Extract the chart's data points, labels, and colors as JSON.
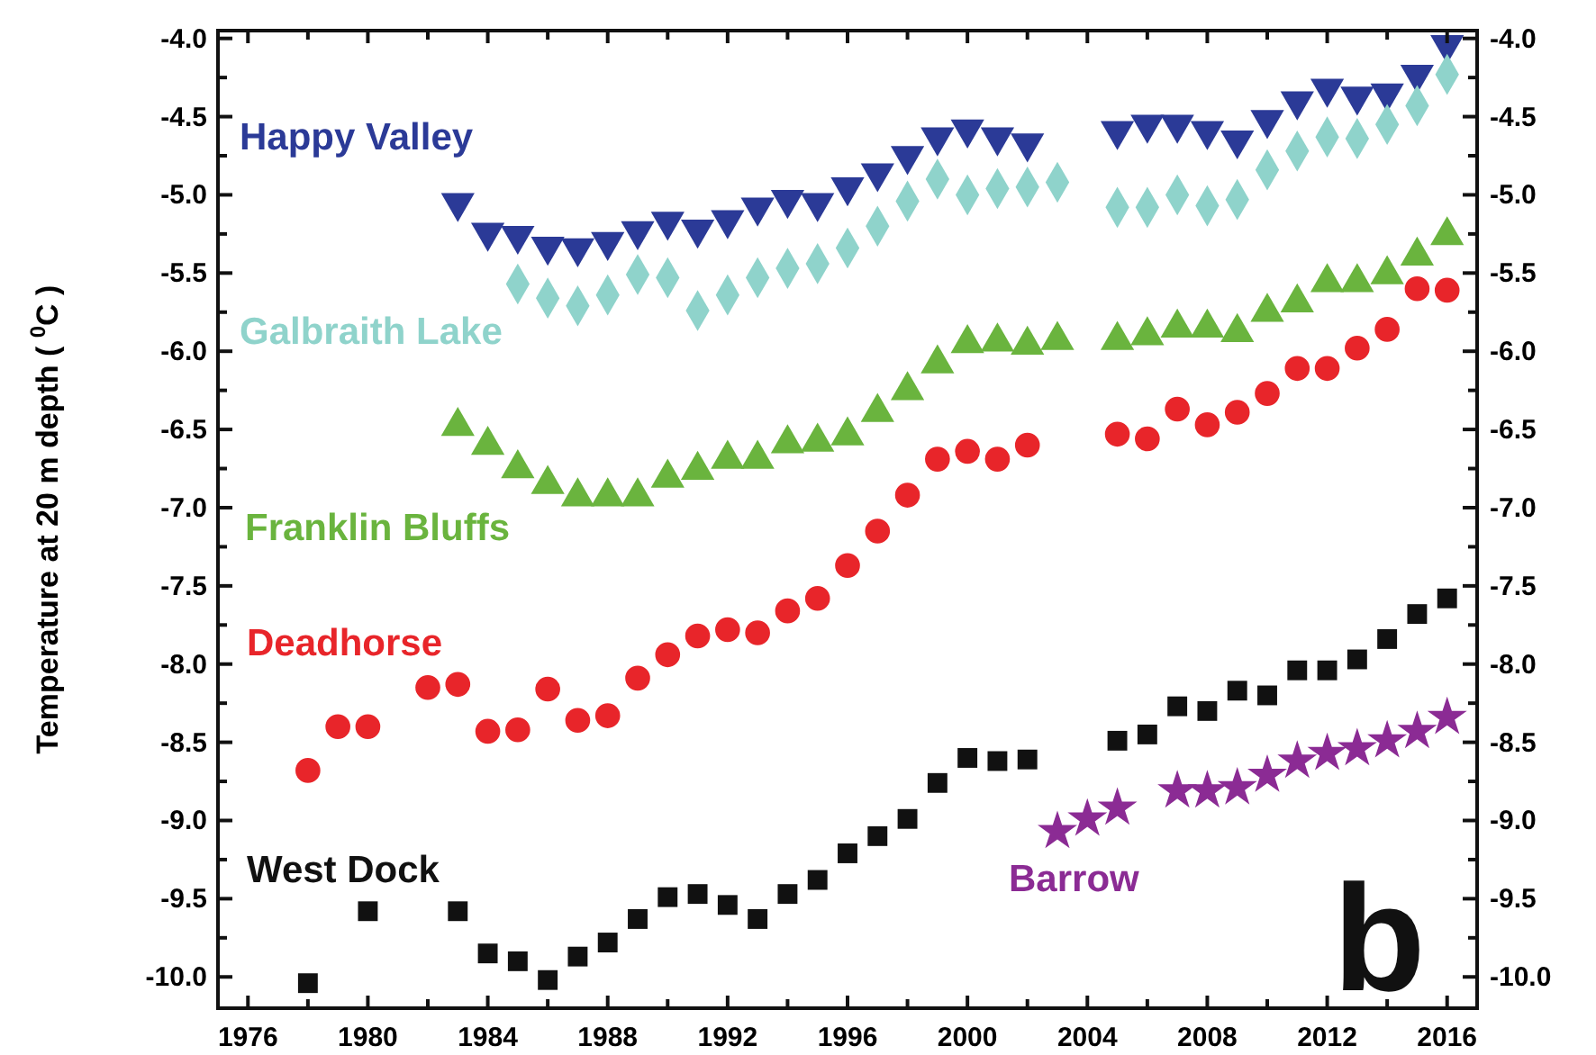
{
  "chart_data": {
    "type": "scatter",
    "ylabel": "Temperature at 20 m depth ( $^{0}$C )",
    "annotations": [
      "b"
    ],
    "xlim": [
      1975,
      2017
    ],
    "ylim": [
      -10.2,
      -3.95
    ],
    "y2lim": [
      -10.2,
      -3.95
    ],
    "xticks": [
      1976,
      {
        "value": 1978,
        "label": null
      },
      1980,
      {
        "value": 1982,
        "label": null
      },
      1984,
      {
        "value": 1986,
        "label": null
      },
      1988,
      {
        "value": 1990,
        "label": null
      },
      1992,
      {
        "value": 1994,
        "label": null
      },
      1996,
      {
        "value": 1998,
        "label": null
      },
      2000,
      {
        "value": 2002,
        "label": null
      },
      2004,
      {
        "value": 2006,
        "label": null
      },
      2008,
      {
        "value": 2010,
        "label": null
      },
      2012,
      {
        "value": 2014,
        "label": null
      },
      2016
    ],
    "yticks": [
      {
        "value": -10,
        "label": "-10.0"
      },
      {
        "value": -9.75,
        "label": null
      },
      {
        "value": -9.5,
        "label": "-9.5"
      },
      {
        "value": -9.25,
        "label": null
      },
      {
        "value": -9,
        "label": "-9.0"
      },
      {
        "value": -8.75,
        "label": null
      },
      {
        "value": -8.5,
        "label": "-8.5"
      },
      {
        "value": -8.25,
        "label": null
      },
      {
        "value": -8,
        "label": "-8.0"
      },
      {
        "value": -7.75,
        "label": null
      },
      {
        "value": -7.5,
        "label": "-7.5"
      },
      {
        "value": -7.25,
        "label": null
      },
      {
        "value": -7,
        "label": "-7.0"
      },
      {
        "value": -6.75,
        "label": null
      },
      {
        "value": -6.5,
        "label": "-6.5"
      },
      {
        "value": -6.25,
        "label": null
      },
      {
        "value": -6,
        "label": "-6.0"
      },
      {
        "value": -5.75,
        "label": null
      },
      {
        "value": -5.5,
        "label": "-5.5"
      },
      {
        "value": -5.25,
        "label": null
      },
      {
        "value": -5,
        "label": "-5.0"
      },
      {
        "value": -4.75,
        "label": null
      },
      {
        "value": -4.5,
        "label": "-4.5"
      },
      {
        "value": -4.25,
        "label": null
      },
      {
        "value": -4,
        "label": "-4.0"
      }
    ],
    "y2ticks": [
      {
        "value": -10,
        "label": "-10.0"
      },
      {
        "value": -9.75,
        "label": null
      },
      {
        "value": -9.5,
        "label": "-9.5"
      },
      {
        "value": -9.25,
        "label": null
      },
      {
        "value": -9,
        "label": "-9.0"
      },
      {
        "value": -8.75,
        "label": null
      },
      {
        "value": -8.5,
        "label": "-8.5"
      },
      {
        "value": -8.25,
        "label": null
      },
      {
        "value": -8,
        "label": "-8.0"
      },
      {
        "value": -7.75,
        "label": null
      },
      {
        "value": -7.5,
        "label": "-7.5"
      },
      {
        "value": -7.25,
        "label": null
      },
      {
        "value": -7,
        "label": "-7.0"
      },
      {
        "value": -6.75,
        "label": null
      },
      {
        "value": -6.5,
        "label": "-6.5"
      },
      {
        "value": -6.25,
        "label": null
      },
      {
        "value": -6,
        "label": "-6.0"
      },
      {
        "value": -5.75,
        "label": null
      },
      {
        "value": -5.5,
        "label": "-5.5"
      },
      {
        "value": -5.25,
        "label": null
      },
      {
        "value": -5,
        "label": "-5.0"
      },
      {
        "value": -4.75,
        "label": null
      },
      {
        "value": -4.5,
        "label": "-4.5"
      },
      {
        "value": -4.25,
        "label": null
      },
      {
        "value": -4,
        "label": "-4.0"
      }
    ],
    "series": [
      {
        "name": "Happy Valley",
        "color": "#2b3a97",
        "marker": "triangle-down",
        "x": [
          1983,
          1984,
          1985,
          1986,
          1987,
          1988,
          1989,
          1990,
          1991,
          1992,
          1993,
          1994,
          1995,
          1996,
          1997,
          1998,
          1999,
          2000,
          2001,
          2002,
          2005,
          2006,
          2007,
          2008,
          2009,
          2010,
          2011,
          2012,
          2013,
          2014,
          2015,
          2016
        ],
        "values": [
          -5.05,
          -5.24,
          -5.26,
          -5.33,
          -5.34,
          -5.3,
          -5.23,
          -5.17,
          -5.22,
          -5.16,
          -5.08,
          -5.03,
          -5.05,
          -4.95,
          -4.86,
          -4.75,
          -4.63,
          -4.58,
          -4.63,
          -4.67,
          -4.59,
          -4.55,
          -4.55,
          -4.59,
          -4.65,
          -4.52,
          -4.4,
          -4.32,
          -4.37,
          -4.35,
          -4.23,
          -4.04
        ]
      },
      {
        "name": "Galbraith Lake",
        "color": "#8fd3cb",
        "marker": "diamond",
        "x": [
          1985,
          1986,
          1987,
          1988,
          1989,
          1990,
          1991,
          1992,
          1993,
          1994,
          1995,
          1996,
          1997,
          1998,
          1999,
          2000,
          2001,
          2002,
          2003,
          2005,
          2006,
          2007,
          2008,
          2009,
          2010,
          2011,
          2012,
          2013,
          2014,
          2015,
          2016
        ],
        "values": [
          -5.57,
          -5.66,
          -5.71,
          -5.64,
          -5.51,
          -5.53,
          -5.74,
          -5.64,
          -5.53,
          -5.47,
          -5.44,
          -5.34,
          -5.2,
          -5.04,
          -4.9,
          -5.0,
          -4.96,
          -4.95,
          -4.92,
          -5.08,
          -5.08,
          -5.0,
          -5.07,
          -5.03,
          -4.84,
          -4.72,
          -4.63,
          -4.64,
          -4.55,
          -4.43,
          -4.23
        ]
      },
      {
        "name": "Franklin Bluffs",
        "color": "#6ab43e",
        "marker": "triangle",
        "x": [
          1983,
          1984,
          1985,
          1986,
          1987,
          1988,
          1989,
          1990,
          1991,
          1992,
          1993,
          1994,
          1995,
          1996,
          1997,
          1998,
          1999,
          2000,
          2001,
          2002,
          2003,
          2005,
          2006,
          2007,
          2008,
          2009,
          2010,
          2011,
          2012,
          2013,
          2014,
          2015,
          2016
        ],
        "values": [
          -6.48,
          -6.6,
          -6.75,
          -6.85,
          -6.93,
          -6.93,
          -6.93,
          -6.81,
          -6.76,
          -6.69,
          -6.69,
          -6.59,
          -6.58,
          -6.54,
          -6.39,
          -6.25,
          -6.08,
          -5.95,
          -5.94,
          -5.96,
          -5.93,
          -5.93,
          -5.9,
          -5.85,
          -5.85,
          -5.88,
          -5.75,
          -5.69,
          -5.56,
          -5.56,
          -5.51,
          -5.39,
          -5.26
        ]
      },
      {
        "name": "Deadhorse",
        "color": "#e8252a",
        "marker": "circle",
        "x": [
          1978,
          1979,
          1980,
          1982,
          1983,
          1984,
          1985,
          1986,
          1987,
          1988,
          1989,
          1990,
          1991,
          1992,
          1993,
          1994,
          1995,
          1996,
          1997,
          1998,
          1999,
          2000,
          2001,
          2002,
          2005,
          2006,
          2007,
          2008,
          2009,
          2010,
          2011,
          2012,
          2013,
          2014,
          2015,
          2016
        ],
        "values": [
          -8.68,
          -8.4,
          -8.4,
          -8.15,
          -8.13,
          -8.43,
          -8.42,
          -8.16,
          -8.36,
          -8.33,
          -8.09,
          -7.94,
          -7.82,
          -7.78,
          -7.8,
          -7.66,
          -7.58,
          -7.37,
          -7.15,
          -6.92,
          -6.69,
          -6.64,
          -6.69,
          -6.6,
          -6.53,
          -6.56,
          -6.37,
          -6.47,
          -6.39,
          -6.27,
          -6.11,
          -6.11,
          -5.98,
          -5.86,
          -5.6,
          -5.61
        ]
      },
      {
        "name": "West Dock",
        "color": "#111111",
        "marker": "square",
        "x": [
          1978,
          1980,
          1983,
          1984,
          1985,
          1986,
          1987,
          1988,
          1989,
          1990,
          1991,
          1992,
          1993,
          1994,
          1995,
          1996,
          1997,
          1998,
          1999,
          2000,
          2001,
          2002,
          2005,
          2006,
          2007,
          2008,
          2009,
          2010,
          2011,
          2012,
          2013,
          2014,
          2015,
          2016
        ],
        "values": [
          -10.04,
          -9.58,
          -9.58,
          -9.85,
          -9.9,
          -10.02,
          -9.87,
          -9.78,
          -9.63,
          -9.49,
          -9.47,
          -9.54,
          -9.63,
          -9.47,
          -9.38,
          -9.21,
          -9.1,
          -8.99,
          -8.76,
          -8.6,
          -8.62,
          -8.61,
          -8.49,
          -8.45,
          -8.27,
          -8.3,
          -8.17,
          -8.2,
          -8.04,
          -8.04,
          -7.97,
          -7.84,
          -7.68,
          -7.58
        ]
      },
      {
        "name": "Barrow",
        "color": "#8b2b94",
        "marker": "star",
        "x": [
          2003,
          2004,
          2005,
          2007,
          2008,
          2009,
          2010,
          2011,
          2012,
          2013,
          2014,
          2015,
          2016
        ],
        "values": [
          -9.07,
          -8.99,
          -8.92,
          -8.81,
          -8.81,
          -8.79,
          -8.71,
          -8.62,
          -8.57,
          -8.54,
          -8.49,
          -8.43,
          -8.34
        ]
      }
    ]
  }
}
